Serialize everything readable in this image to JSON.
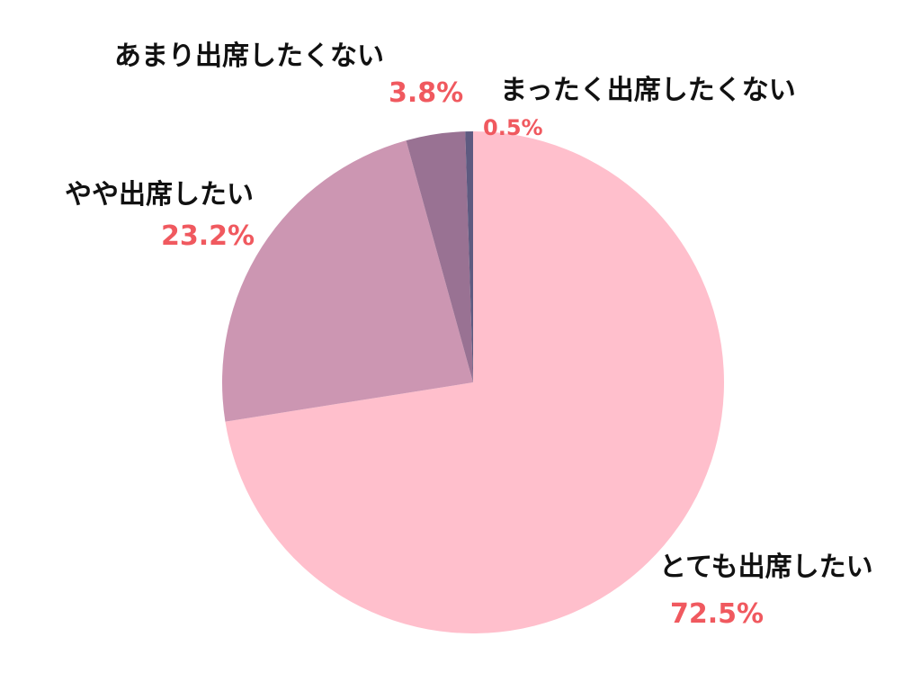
{
  "chart_data": {
    "type": "pie",
    "start_angle_deg": 0,
    "direction": "clockwise",
    "slices": [
      {
        "label": "とても出席したい",
        "value": 72.5,
        "value_label": "72.5%",
        "color": "#ffbfcc"
      },
      {
        "label": "やや出席したい",
        "value": 23.2,
        "value_label": "23.2%",
        "color": "#cc96b2"
      },
      {
        "label": "あまり出席したくない",
        "value": 3.8,
        "value_label": "3.8%",
        "color": "#997293"
      },
      {
        "label": "まったく出席したくない",
        "value": 0.5,
        "value_label": "0.5%",
        "color": "#5e5a80"
      }
    ],
    "value_label_color": "#f0595f",
    "label_color": "#111111"
  }
}
